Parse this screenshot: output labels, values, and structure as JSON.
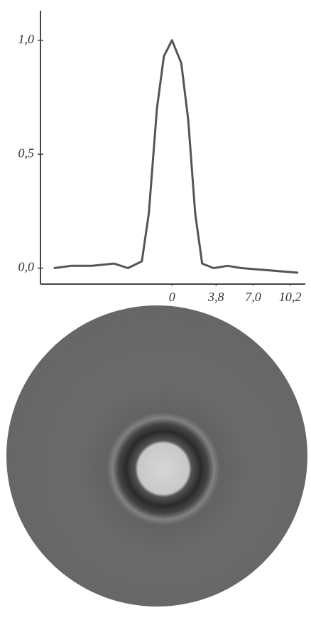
{
  "chart_data": {
    "type": "line",
    "x": [
      -10.2,
      -8.7,
      -6.9,
      -5.0,
      -3.8,
      -2.6,
      -2.0,
      -1.3,
      -0.7,
      0,
      0.8,
      1.4,
      2.0,
      2.6,
      3.6,
      4.8,
      6.0,
      8.5,
      10.9
    ],
    "series": [
      {
        "color": "#555555",
        "values": [
          0.0,
          0.01,
          0.01,
          0.02,
          0.0,
          0.03,
          0.24,
          0.7,
          0.93,
          1.0,
          0.9,
          0.65,
          0.24,
          0.02,
          0.0,
          0.01,
          0.0,
          -0.01,
          -0.02
        ]
      }
    ],
    "xlim": [
      -11.35,
      11.2
    ],
    "ylim": [
      -0.07,
      1.13
    ],
    "xticks": [
      0,
      {
        "value": 3.8,
        "label": "3,8"
      },
      {
        "value": 7.0,
        "label": "7,0"
      },
      {
        "value": 10.2,
        "label": "10,2"
      }
    ],
    "yticks": [
      {
        "value": 0.0,
        "label": "0,0"
      },
      {
        "value": 0.5,
        "label": "0,5"
      },
      {
        "value": 1.0,
        "label": "1,0"
      }
    ],
    "grid": false
  }
}
